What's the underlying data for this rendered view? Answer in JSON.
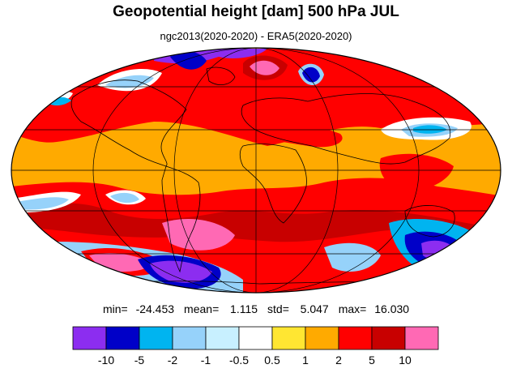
{
  "title": "Geopotential height [dam] 500 hPa JUL",
  "subtitle": "ngc2013(2020-2020) - ERA5(2020-2020)",
  "stats": {
    "min_label": "min=",
    "min": "-24.453",
    "mean_label": "mean=",
    "mean": "1.115",
    "std_label": "std=",
    "std": "5.047",
    "max_label": "max=",
    "max": "16.030"
  },
  "colorbar": {
    "colors": [
      "#8c2df0",
      "#0000c8",
      "#00b4f0",
      "#96d2fa",
      "#c8f0ff",
      "#ffffff",
      "#ffe632",
      "#ffaa00",
      "#ff0000",
      "#c80000",
      "#ff69b4"
    ],
    "labels": [
      "-10",
      "-5",
      "-2",
      "-1",
      "-0.5",
      "0.5",
      "1",
      "2",
      "5",
      "10"
    ]
  },
  "map": {
    "projection": "Mollweide",
    "background_color": "#ffaa00"
  }
}
